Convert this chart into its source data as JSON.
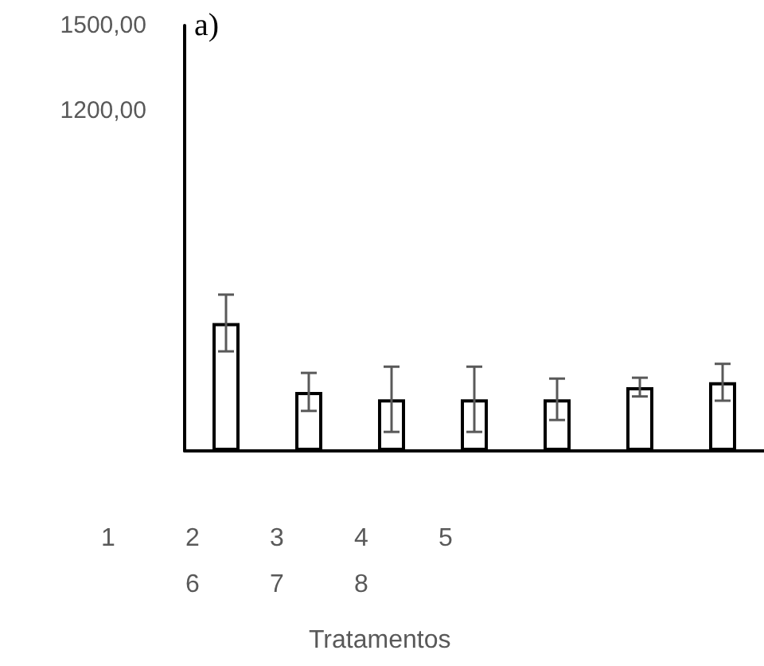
{
  "chart_data": {
    "type": "bar",
    "title": "a)",
    "categories": [
      null,
      null,
      null,
      null,
      null,
      null,
      null
    ],
    "values": [
      451,
      208,
      182,
      182,
      182,
      225,
      242
    ],
    "errors": [
      100,
      67,
      115,
      115,
      73,
      33,
      65
    ],
    "color": "#ffffff",
    "ylim": [
      0,
      1500
    ],
    "yticks": [
      {
        "value": 1200,
        "label": "1200,00"
      },
      {
        "value": 1500,
        "label": "1500,00"
      }
    ],
    "grid": false,
    "annotations": [
      "1",
      "2",
      "3",
      "4",
      "5",
      "6",
      "7",
      "8",
      "Tratamentos"
    ]
  }
}
